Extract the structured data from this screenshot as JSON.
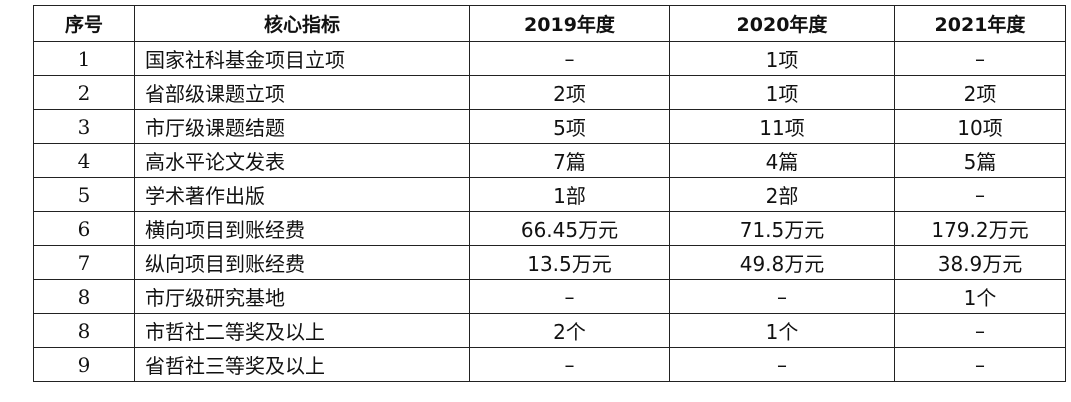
{
  "table": {
    "headers": [
      "序号",
      "核心指标",
      "2019年度",
      "2020年度",
      "2021年度"
    ],
    "rows": [
      [
        "1",
        "国家社科基金项目立项",
        "–",
        "1项",
        "–"
      ],
      [
        "2",
        "省部级课题立项",
        "2项",
        "1项",
        "2项"
      ],
      [
        "3",
        "市厅级课题结题",
        "5项",
        "11项",
        "10项"
      ],
      [
        "4",
        "高水平论文发表",
        "7篇",
        "4篇",
        "5篇"
      ],
      [
        "5",
        "学术著作出版",
        "1部",
        "2部",
        "–"
      ],
      [
        "6",
        "横向项目到账经费",
        "66.45万元",
        "71.5万元",
        "179.2万元"
      ],
      [
        "7",
        "纵向项目到账经费",
        "13.5万元",
        "49.8万元",
        "38.9万元"
      ],
      [
        "8",
        "市厅级研究基地",
        "–",
        "–",
        "1个"
      ],
      [
        "8",
        "市哲社二等奖及以上",
        "2个",
        "1个",
        "–"
      ],
      [
        "9",
        "省哲社三等奖及以上",
        "–",
        "–",
        "–"
      ]
    ]
  }
}
